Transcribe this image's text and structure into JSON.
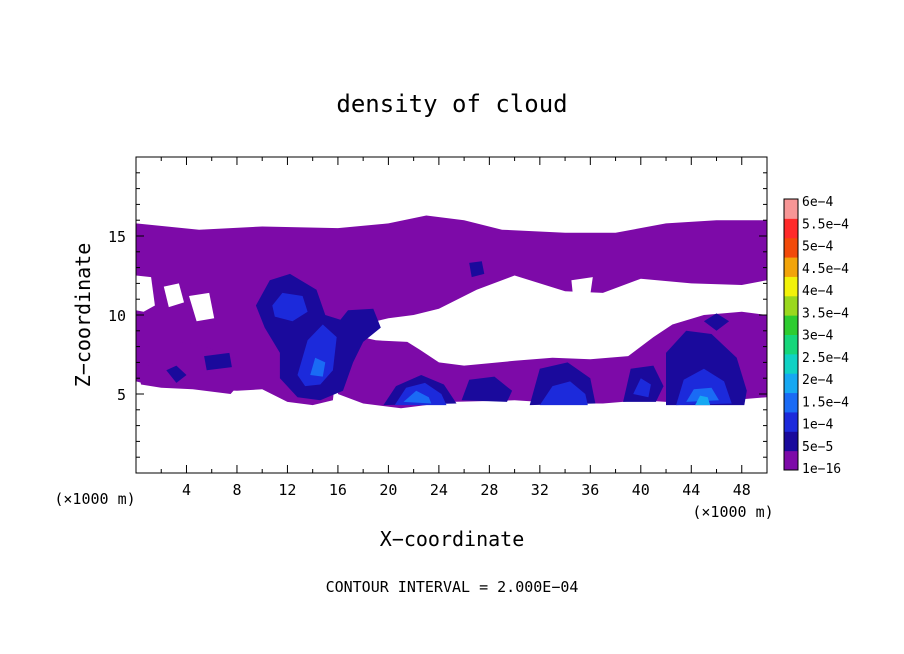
{
  "chart_data": {
    "type": "heatmap",
    "title": "density of cloud",
    "xlabel": "X−coordinate",
    "ylabel": "Z−coordinate",
    "x_unit_label_left": "(×1000 m)",
    "x_unit_label_right": "(×1000 m)",
    "footer": "CONTOUR INTERVAL = 2.000E−04",
    "xlim": [
      0,
      50
    ],
    "ylim": [
      0,
      20
    ],
    "x_ticks": [
      4,
      8,
      12,
      16,
      20,
      24,
      28,
      32,
      36,
      40,
      44,
      48
    ],
    "x_tick_labels": [
      "4",
      "8",
      "12",
      "16",
      "20",
      "24",
      "28",
      "32",
      "36",
      "40",
      "44",
      "48"
    ],
    "y_ticks": [
      5,
      10,
      15
    ],
    "y_tick_labels": [
      "5",
      "10",
      "15"
    ],
    "colorbar": {
      "levels": [
        "1e−16",
        "5e−5",
        "1e−4",
        "1.5e−4",
        "2e−4",
        "2.5e−4",
        "3e−4",
        "3.5e−4",
        "4e−4",
        "4.5e−4",
        "5e−4",
        "5.5e−4",
        "6e−4"
      ],
      "colors": [
        "#7d0aa8",
        "#1a0a9c",
        "#1c2adb",
        "#1a6bf5",
        "#16a8f2",
        "#10d2c4",
        "#16d67a",
        "#2ecc30",
        "#9ad81e",
        "#f2f20a",
        "#f2a40a",
        "#f24a0a",
        "#ff2a2a",
        "#f79696"
      ]
    },
    "regions": {
      "purple": [
        {
          "points": [
            [
              0,
              15.8
            ],
            [
              5,
              15.4
            ],
            [
              10,
              15.6
            ],
            [
              16,
              15.5
            ],
            [
              20,
              15.8
            ],
            [
              23,
              16.3
            ],
            [
              26,
              16.0
            ],
            [
              29,
              15.4
            ],
            [
              34,
              15.2
            ],
            [
              38,
              15.2
            ],
            [
              42,
              15.8
            ],
            [
              46,
              16.0
            ],
            [
              50,
              16.0
            ],
            [
              50,
              12.2
            ],
            [
              48,
              11.9
            ],
            [
              44,
              12.0
            ],
            [
              40,
              12.3
            ],
            [
              37,
              11.4
            ],
            [
              34,
              11.5
            ],
            [
              30,
              12.5
            ],
            [
              27,
              11.6
            ],
            [
              24,
              10.4
            ],
            [
              22,
              10.0
            ],
            [
              20,
              9.8
            ],
            [
              18,
              9.4
            ],
            [
              17,
              8.5
            ],
            [
              16,
              7.5
            ],
            [
              15.6,
              4.6
            ],
            [
              14,
              4.3
            ],
            [
              12,
              4.5
            ],
            [
              10,
              5.3
            ],
            [
              8,
              5.2
            ],
            [
              5,
              5.3
            ],
            [
              1,
              5.6
            ],
            [
              0,
              5.8
            ]
          ],
          "level": 0
        },
        {
          "points": [
            [
              0,
              12.5
            ],
            [
              1.2,
              12.4
            ],
            [
              1.5,
              10.6
            ],
            [
              0.6,
              10.2
            ],
            [
              0,
              10.3
            ]
          ],
          "level": -1
        },
        {
          "points": [
            [
              2.2,
              11.8
            ],
            [
              3.4,
              12.0
            ],
            [
              3.8,
              10.8
            ],
            [
              2.6,
              10.5
            ]
          ],
          "level": -1
        },
        {
          "points": [
            [
              4.2,
              11.2
            ],
            [
              5.8,
              11.4
            ],
            [
              6.2,
              9.8
            ],
            [
              4.8,
              9.6
            ]
          ],
          "level": -1
        },
        {
          "points": [
            [
              34.5,
              12.2
            ],
            [
              36.2,
              12.4
            ],
            [
              36.0,
              11.3
            ],
            [
              34.6,
              11.4
            ]
          ],
          "level": -1
        },
        {
          "points": [
            [
              30.5,
              11.0
            ],
            [
              31.5,
              11.2
            ],
            [
              31.8,
              10.6
            ],
            [
              30.6,
              10.5
            ]
          ],
          "level": -1
        },
        {
          "points": [
            [
              16.8,
              8.8
            ],
            [
              19.0,
              8.4
            ],
            [
              21.5,
              8.3
            ],
            [
              22.5,
              7.8
            ],
            [
              24.0,
              7.0
            ],
            [
              26.0,
              6.8
            ],
            [
              30,
              7.1
            ],
            [
              33,
              7.3
            ],
            [
              36,
              7.2
            ],
            [
              39,
              7.4
            ],
            [
              41.0,
              8.6
            ],
            [
              42.5,
              9.4
            ],
            [
              45,
              10.0
            ],
            [
              48,
              10.2
            ],
            [
              50,
              10.0
            ],
            [
              50,
              4.8
            ],
            [
              44,
              4.4
            ],
            [
              40,
              4.6
            ],
            [
              37,
              4.4
            ],
            [
              34,
              4.4
            ],
            [
              30,
              4.6
            ],
            [
              25,
              4.5
            ],
            [
              21,
              4.1
            ],
            [
              18,
              4.4
            ],
            [
              16,
              5.0
            ]
          ],
          "level": 0
        },
        {
          "points": [
            [
              0.2,
              6.4
            ],
            [
              2.0,
              7.3
            ],
            [
              3.4,
              8.3
            ],
            [
              5.5,
              8.0
            ],
            [
              8.0,
              7.2
            ],
            [
              8.6,
              6.0
            ],
            [
              7.5,
              5.0
            ],
            [
              4.5,
              5.3
            ],
            [
              2.0,
              5.4
            ],
            [
              0.4,
              5.6
            ]
          ],
          "level": 0
        }
      ],
      "navy": [
        {
          "points": [
            [
              9.5,
              10.6
            ],
            [
              10.6,
              12.2
            ],
            [
              12.2,
              12.6
            ],
            [
              14.3,
              11.6
            ],
            [
              15.0,
              10.0
            ],
            [
              16.2,
              9.7
            ],
            [
              16.8,
              10.3
            ],
            [
              18.8,
              10.4
            ],
            [
              19.4,
              9.2
            ],
            [
              18.0,
              8.3
            ],
            [
              17.2,
              7.0
            ],
            [
              16.4,
              5.2
            ],
            [
              14.6,
              4.6
            ],
            [
              12.8,
              4.8
            ],
            [
              11.4,
              6.0
            ],
            [
              11.4,
              7.6
            ],
            [
              10.2,
              9.2
            ]
          ],
          "level": 1
        },
        {
          "points": [
            [
              19.6,
              4.3
            ],
            [
              20.6,
              5.5
            ],
            [
              22.6,
              6.2
            ],
            [
              24.4,
              5.6
            ],
            [
              25.4,
              4.4
            ]
          ],
          "level": 1
        },
        {
          "points": [
            [
              25.8,
              4.6
            ],
            [
              26.4,
              5.9
            ],
            [
              28.4,
              6.1
            ],
            [
              29.8,
              5.2
            ],
            [
              29.4,
              4.5
            ]
          ],
          "level": 1
        },
        {
          "points": [
            [
              31.2,
              4.3
            ],
            [
              32.0,
              6.6
            ],
            [
              34.2,
              7.0
            ],
            [
              36.0,
              6.0
            ],
            [
              36.4,
              4.4
            ]
          ],
          "level": 1
        },
        {
          "points": [
            [
              38.6,
              4.5
            ],
            [
              39.2,
              6.6
            ],
            [
              41.0,
              6.8
            ],
            [
              41.8,
              5.5
            ],
            [
              41.2,
              4.5
            ]
          ],
          "level": 1
        },
        {
          "points": [
            [
              42.0,
              4.3
            ],
            [
              42.0,
              7.6
            ],
            [
              43.6,
              9.0
            ],
            [
              45.6,
              8.8
            ],
            [
              47.6,
              7.3
            ],
            [
              48.4,
              5.2
            ],
            [
              48.2,
              4.3
            ]
          ],
          "level": 1
        },
        {
          "points": [
            [
              2.4,
              6.5
            ],
            [
              3.2,
              6.8
            ],
            [
              4.0,
              6.2
            ],
            [
              3.2,
              5.7
            ]
          ],
          "level": 1
        },
        {
          "points": [
            [
              5.4,
              7.4
            ],
            [
              7.4,
              7.6
            ],
            [
              7.6,
              6.7
            ],
            [
              5.6,
              6.5
            ]
          ],
          "level": 1
        },
        {
          "points": [
            [
              45.0,
              9.6
            ],
            [
              46.0,
              10.1
            ],
            [
              47.0,
              9.6
            ],
            [
              46.0,
              9.0
            ]
          ],
          "level": 1
        },
        {
          "points": [
            [
              26.4,
              13.3
            ],
            [
              27.4,
              13.4
            ],
            [
              27.6,
              12.6
            ],
            [
              26.6,
              12.4
            ]
          ],
          "level": 1
        }
      ],
      "blue": [
        {
          "points": [
            [
              10.8,
              10.6
            ],
            [
              11.6,
              11.4
            ],
            [
              13.2,
              11.2
            ],
            [
              13.6,
              10.2
            ],
            [
              12.4,
              9.6
            ],
            [
              11.0,
              9.9
            ]
          ],
          "level": 2
        },
        {
          "points": [
            [
              12.8,
              6.2
            ],
            [
              13.6,
              8.4
            ],
            [
              14.8,
              9.4
            ],
            [
              15.9,
              8.6
            ],
            [
              15.6,
              6.5
            ],
            [
              14.6,
              5.6
            ],
            [
              13.4,
              5.5
            ]
          ],
          "level": 2
        },
        {
          "points": [
            [
              20.5,
              4.3
            ],
            [
              21.4,
              5.4
            ],
            [
              22.9,
              5.7
            ],
            [
              24.2,
              5.0
            ],
            [
              24.6,
              4.3
            ]
          ],
          "level": 2
        },
        {
          "points": [
            [
              32.0,
              4.3
            ],
            [
              33.0,
              5.5
            ],
            [
              34.4,
              5.8
            ],
            [
              35.6,
              5.0
            ],
            [
              35.8,
              4.3
            ]
          ],
          "level": 2
        },
        {
          "points": [
            [
              42.8,
              4.3
            ],
            [
              43.4,
              5.9
            ],
            [
              45.0,
              6.6
            ],
            [
              46.6,
              5.8
            ],
            [
              47.2,
              4.4
            ]
          ],
          "level": 2
        },
        {
          "points": [
            [
              39.4,
              5.0
            ],
            [
              40.0,
              6.0
            ],
            [
              40.8,
              5.6
            ],
            [
              40.6,
              4.8
            ]
          ],
          "level": 2
        }
      ],
      "light": [
        {
          "points": [
            [
              13.8,
              6.2
            ],
            [
              14.2,
              7.3
            ],
            [
              15.0,
              7.0
            ],
            [
              14.8,
              6.1
            ]
          ],
          "level": 3
        },
        {
          "points": [
            [
              21.2,
              4.5
            ],
            [
              22.2,
              5.2
            ],
            [
              23.2,
              4.8
            ],
            [
              23.4,
              4.4
            ]
          ],
          "level": 3
        },
        {
          "points": [
            [
              43.6,
              4.5
            ],
            [
              44.2,
              5.3
            ],
            [
              45.6,
              5.4
            ],
            [
              46.2,
              4.6
            ]
          ],
          "level": 3
        },
        {
          "points": [
            [
              44.3,
              4.3
            ],
            [
              44.7,
              4.9
            ],
            [
              45.3,
              4.8
            ],
            [
              45.5,
              4.3
            ]
          ],
          "level": 4
        }
      ]
    }
  }
}
